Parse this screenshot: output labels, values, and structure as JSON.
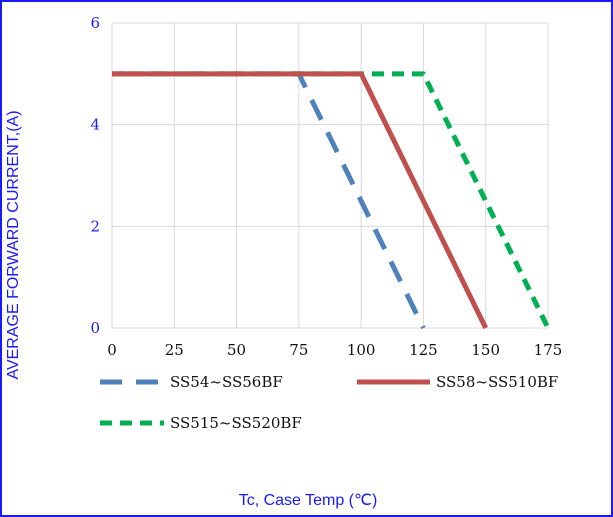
{
  "chart_data": {
    "type": "line",
    "title": "",
    "xlabel": "Tc, Case Temp (℃)",
    "ylabel": "AVERAGE FORWARD CURRENT,(A)",
    "xlim": [
      0,
      175
    ],
    "ylim": [
      0,
      6
    ],
    "xticks": [
      0,
      25,
      50,
      75,
      100,
      125,
      150,
      175
    ],
    "yticks": [
      0,
      2,
      4,
      6
    ],
    "xtick_labels": [
      "0",
      "25",
      "50",
      "75",
      "100",
      "125",
      "150",
      "175"
    ],
    "ytick_labels": [
      "0",
      "2",
      "4",
      "6"
    ],
    "grid": true,
    "legend_position": "bottom",
    "series": [
      {
        "name": "SS54~SS56BF",
        "color": "#4f81bd",
        "dash": "long-dash",
        "x": [
          0,
          75,
          125
        ],
        "y": [
          5,
          5,
          0
        ]
      },
      {
        "name": "SS58~SS510BF",
        "color": "#c0504d",
        "dash": "solid",
        "x": [
          0,
          100,
          150
        ],
        "y": [
          5,
          5,
          0
        ]
      },
      {
        "name": "SS515~SS520BF",
        "color": "#00b050",
        "dash": "short-dash",
        "x": [
          0,
          125,
          175
        ],
        "y": [
          5,
          5,
          0
        ]
      }
    ]
  }
}
